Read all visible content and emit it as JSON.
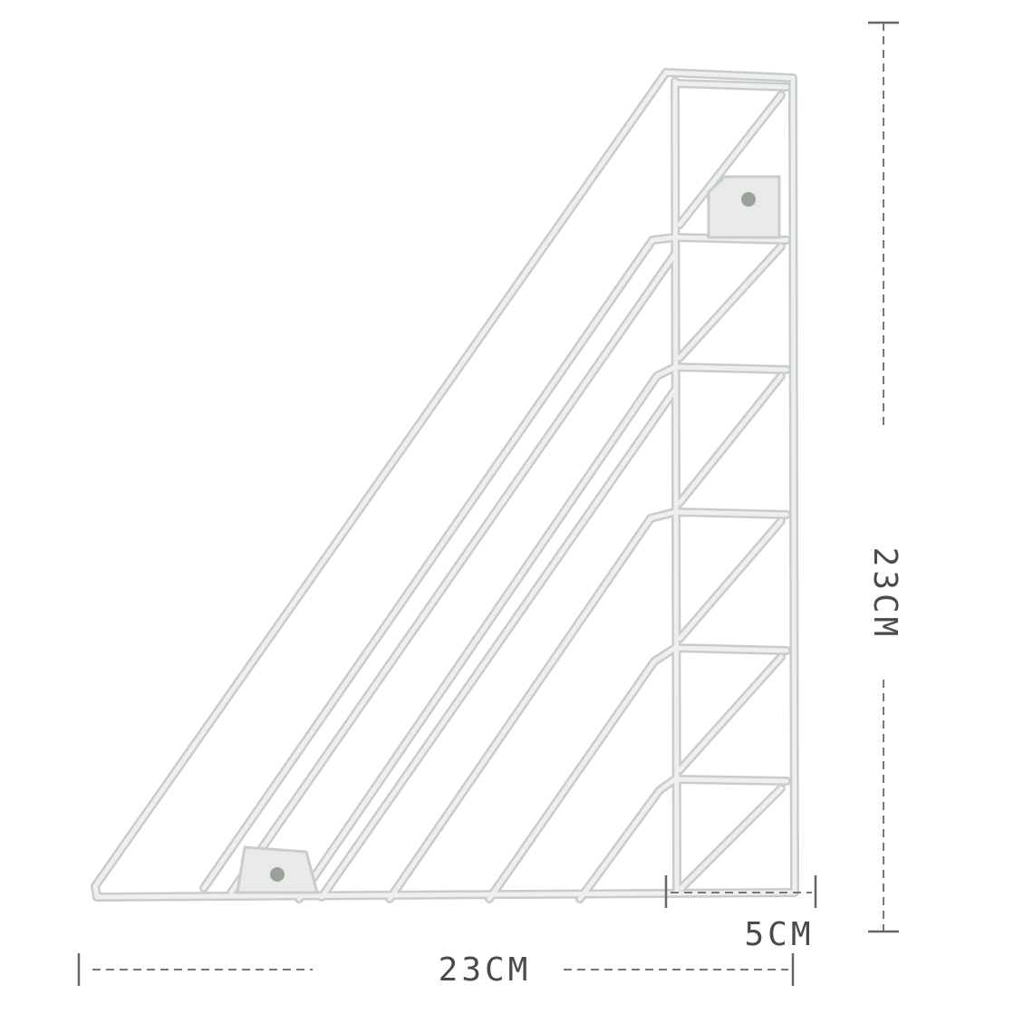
{
  "dimensions": {
    "height_label": "23CM",
    "width_label": "23CM",
    "depth_label": "5CM"
  }
}
